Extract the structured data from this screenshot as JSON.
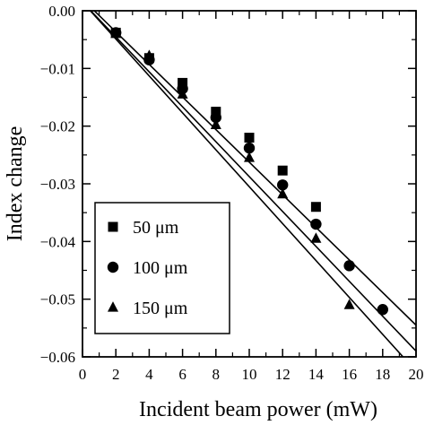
{
  "chart_data": {
    "type": "scatter",
    "xlabel": "Incident beam power (mW)",
    "ylabel": "Index change",
    "xlim": [
      0,
      20
    ],
    "ylim": [
      -0.06,
      0.0
    ],
    "x_ticks": [
      0,
      2,
      4,
      6,
      8,
      10,
      12,
      14,
      16,
      18,
      20
    ],
    "x_tick_labels": [
      "0",
      "2",
      "4",
      "6",
      "8",
      "10",
      "12",
      "14",
      "16",
      "18",
      "20"
    ],
    "y_ticks": [
      0.0,
      -0.01,
      -0.02,
      -0.03,
      -0.04,
      -0.05,
      -0.06
    ],
    "y_tick_labels": [
      "0.00",
      "−0.01",
      "−0.02",
      "−0.03",
      "−0.04",
      "−0.05",
      "−0.06"
    ],
    "grid": false,
    "legend_position": "bottom-left",
    "series": [
      {
        "name": "50 μm",
        "marker": "square",
        "x": [
          2,
          4,
          6,
          8,
          10,
          12,
          14
        ],
        "y": [
          -0.0038,
          -0.0082,
          -0.0125,
          -0.0175,
          -0.022,
          -0.0277,
          -0.034
        ],
        "fit_line": {
          "x": [
            0,
            20
          ],
          "y": [
            0.002,
            -0.0545
          ]
        }
      },
      {
        "name": "100 μm",
        "marker": "circle",
        "x": [
          2,
          4,
          6,
          8,
          10,
          12,
          14,
          16,
          18
        ],
        "y": [
          -0.0038,
          -0.0085,
          -0.0135,
          -0.0185,
          -0.0238,
          -0.0302,
          -0.037,
          -0.0442,
          -0.0518
        ],
        "fit_line": {
          "x": [
            0,
            20
          ],
          "y": [
            0.0015,
            -0.059
          ]
        }
      },
      {
        "name": "150 μm",
        "marker": "triangle",
        "x": [
          2,
          4,
          6,
          8,
          10,
          12,
          14,
          16
        ],
        "y": [
          -0.004,
          -0.0078,
          -0.0145,
          -0.0198,
          -0.0255,
          -0.0318,
          -0.0395,
          -0.051
        ],
        "fit_line": {
          "x": [
            0,
            20
          ],
          "y": [
            0.0015,
            -0.0625
          ]
        }
      }
    ]
  }
}
